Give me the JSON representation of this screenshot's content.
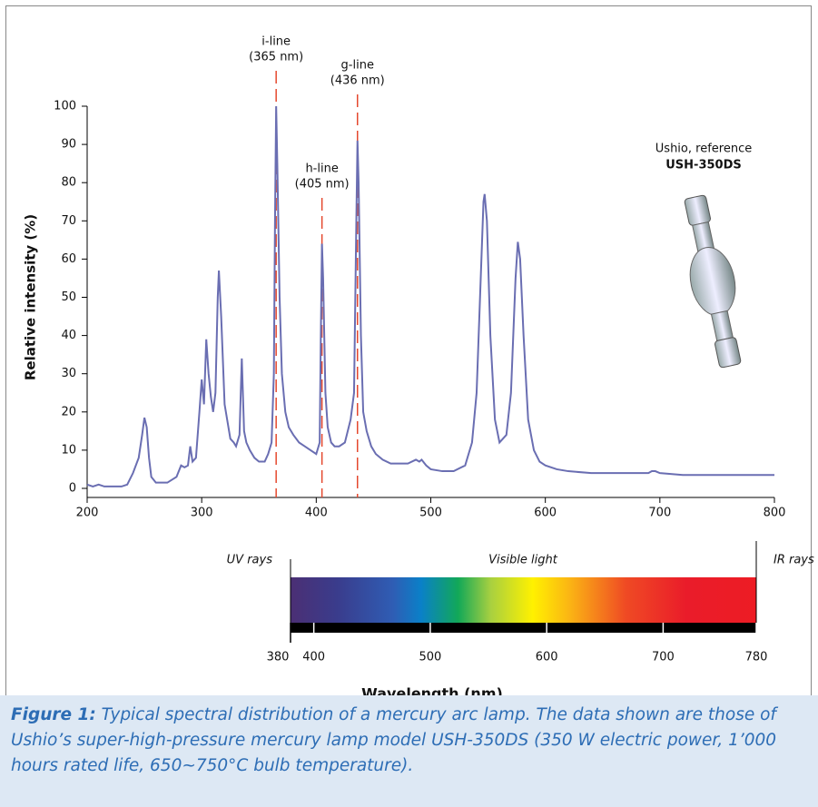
{
  "chart_data": {
    "type": "line",
    "ylabel": "Relative intensity (%)",
    "x": [
      200,
      205,
      210,
      215,
      220,
      230,
      235,
      240,
      245,
      248,
      250,
      252,
      254,
      256,
      260,
      270,
      278,
      282,
      285,
      288,
      290,
      292,
      295,
      298,
      300,
      302,
      304,
      306,
      308,
      310,
      312,
      314,
      315,
      317,
      320,
      325,
      328,
      330,
      333,
      335,
      337,
      339,
      342,
      346,
      350,
      355,
      358,
      361,
      363,
      364,
      365,
      366,
      368,
      370,
      373,
      376,
      380,
      385,
      390,
      395,
      400,
      403,
      404,
      405,
      406,
      408,
      410,
      413,
      416,
      420,
      425,
      430,
      433,
      435,
      436,
      437,
      439,
      441,
      444,
      448,
      452,
      458,
      465,
      473,
      480,
      487,
      490,
      492,
      496,
      500,
      510,
      520,
      530,
      536,
      540,
      543,
      546,
      547,
      549,
      552,
      556,
      560,
      566,
      570,
      574,
      576,
      578,
      581,
      585,
      590,
      595,
      600,
      610,
      620,
      640,
      660,
      680,
      690,
      693,
      696,
      700,
      720,
      750,
      780,
      800
    ],
    "series": [
      {
        "color": "#6a6eb2",
        "values": [
          1,
          0.5,
          1,
          0.5,
          0.5,
          0.5,
          1,
          4,
          8,
          14,
          18.5,
          16,
          8,
          3,
          1.5,
          1.5,
          3,
          6,
          5.5,
          6,
          11,
          7,
          8,
          20,
          28.5,
          22,
          39,
          30,
          24,
          20,
          25,
          50,
          57,
          45,
          22,
          13,
          12,
          11,
          14,
          34,
          15,
          12,
          10,
          8,
          7,
          7,
          9,
          12,
          30,
          70,
          100,
          85,
          50,
          30,
          20,
          16,
          14,
          12,
          11,
          10,
          9,
          12,
          40,
          64,
          55,
          25,
          16,
          12,
          11,
          11,
          12,
          18,
          25,
          70,
          91,
          80,
          40,
          20,
          15,
          11,
          9,
          7.5,
          6.5,
          6.5,
          6.5,
          7.5,
          7,
          7.5,
          6,
          5,
          4.5,
          4.5,
          6,
          12,
          25,
          50,
          75,
          77,
          70,
          40,
          18,
          12,
          14,
          25,
          55,
          64.5,
          60,
          40,
          18,
          10,
          7,
          6,
          5,
          4.5,
          4,
          4,
          4,
          4,
          4.5,
          4.5,
          4,
          3.5,
          3.5,
          3.5,
          3.5
        ]
      }
    ],
    "xlim": [
      200,
      800
    ],
    "ylim": [
      0,
      100
    ],
    "xticks": [
      200,
      300,
      400,
      500,
      600,
      700,
      800
    ],
    "yticks": [
      0,
      10,
      20,
      30,
      40,
      50,
      60,
      70,
      80,
      90,
      100
    ],
    "annotations": [
      {
        "lines": [
          "i-line",
          "(365 nm)"
        ],
        "x": 365,
        "color": "#e5482e"
      },
      {
        "lines": [
          "h-line",
          "(405 nm)"
        ],
        "x": 405,
        "color": "#e5482e"
      },
      {
        "lines": [
          "g-line",
          "(436 nm)"
        ],
        "x": 436,
        "color": "#e5482e"
      }
    ],
    "lamp_label": [
      "Ushio, reference",
      "USH-350DS"
    ]
  },
  "spectrum_bar": {
    "regions": [
      "UV rays",
      "Visible light",
      "IR rays"
    ],
    "xlim": [
      380,
      780
    ],
    "xticks": [
      380,
      400,
      500,
      600,
      700,
      780
    ],
    "xlabel": "Wavelength (nm)"
  },
  "caption": {
    "label": "Figure 1:",
    "text": "Typical spectral distribution of a mercury arc lamp. The data shown are those of Ushio’s super-high-pressure mercury lamp model USH-350DS (350 W electric power, 1’000 hours rated life, 650~750°C bulb temperature)."
  }
}
